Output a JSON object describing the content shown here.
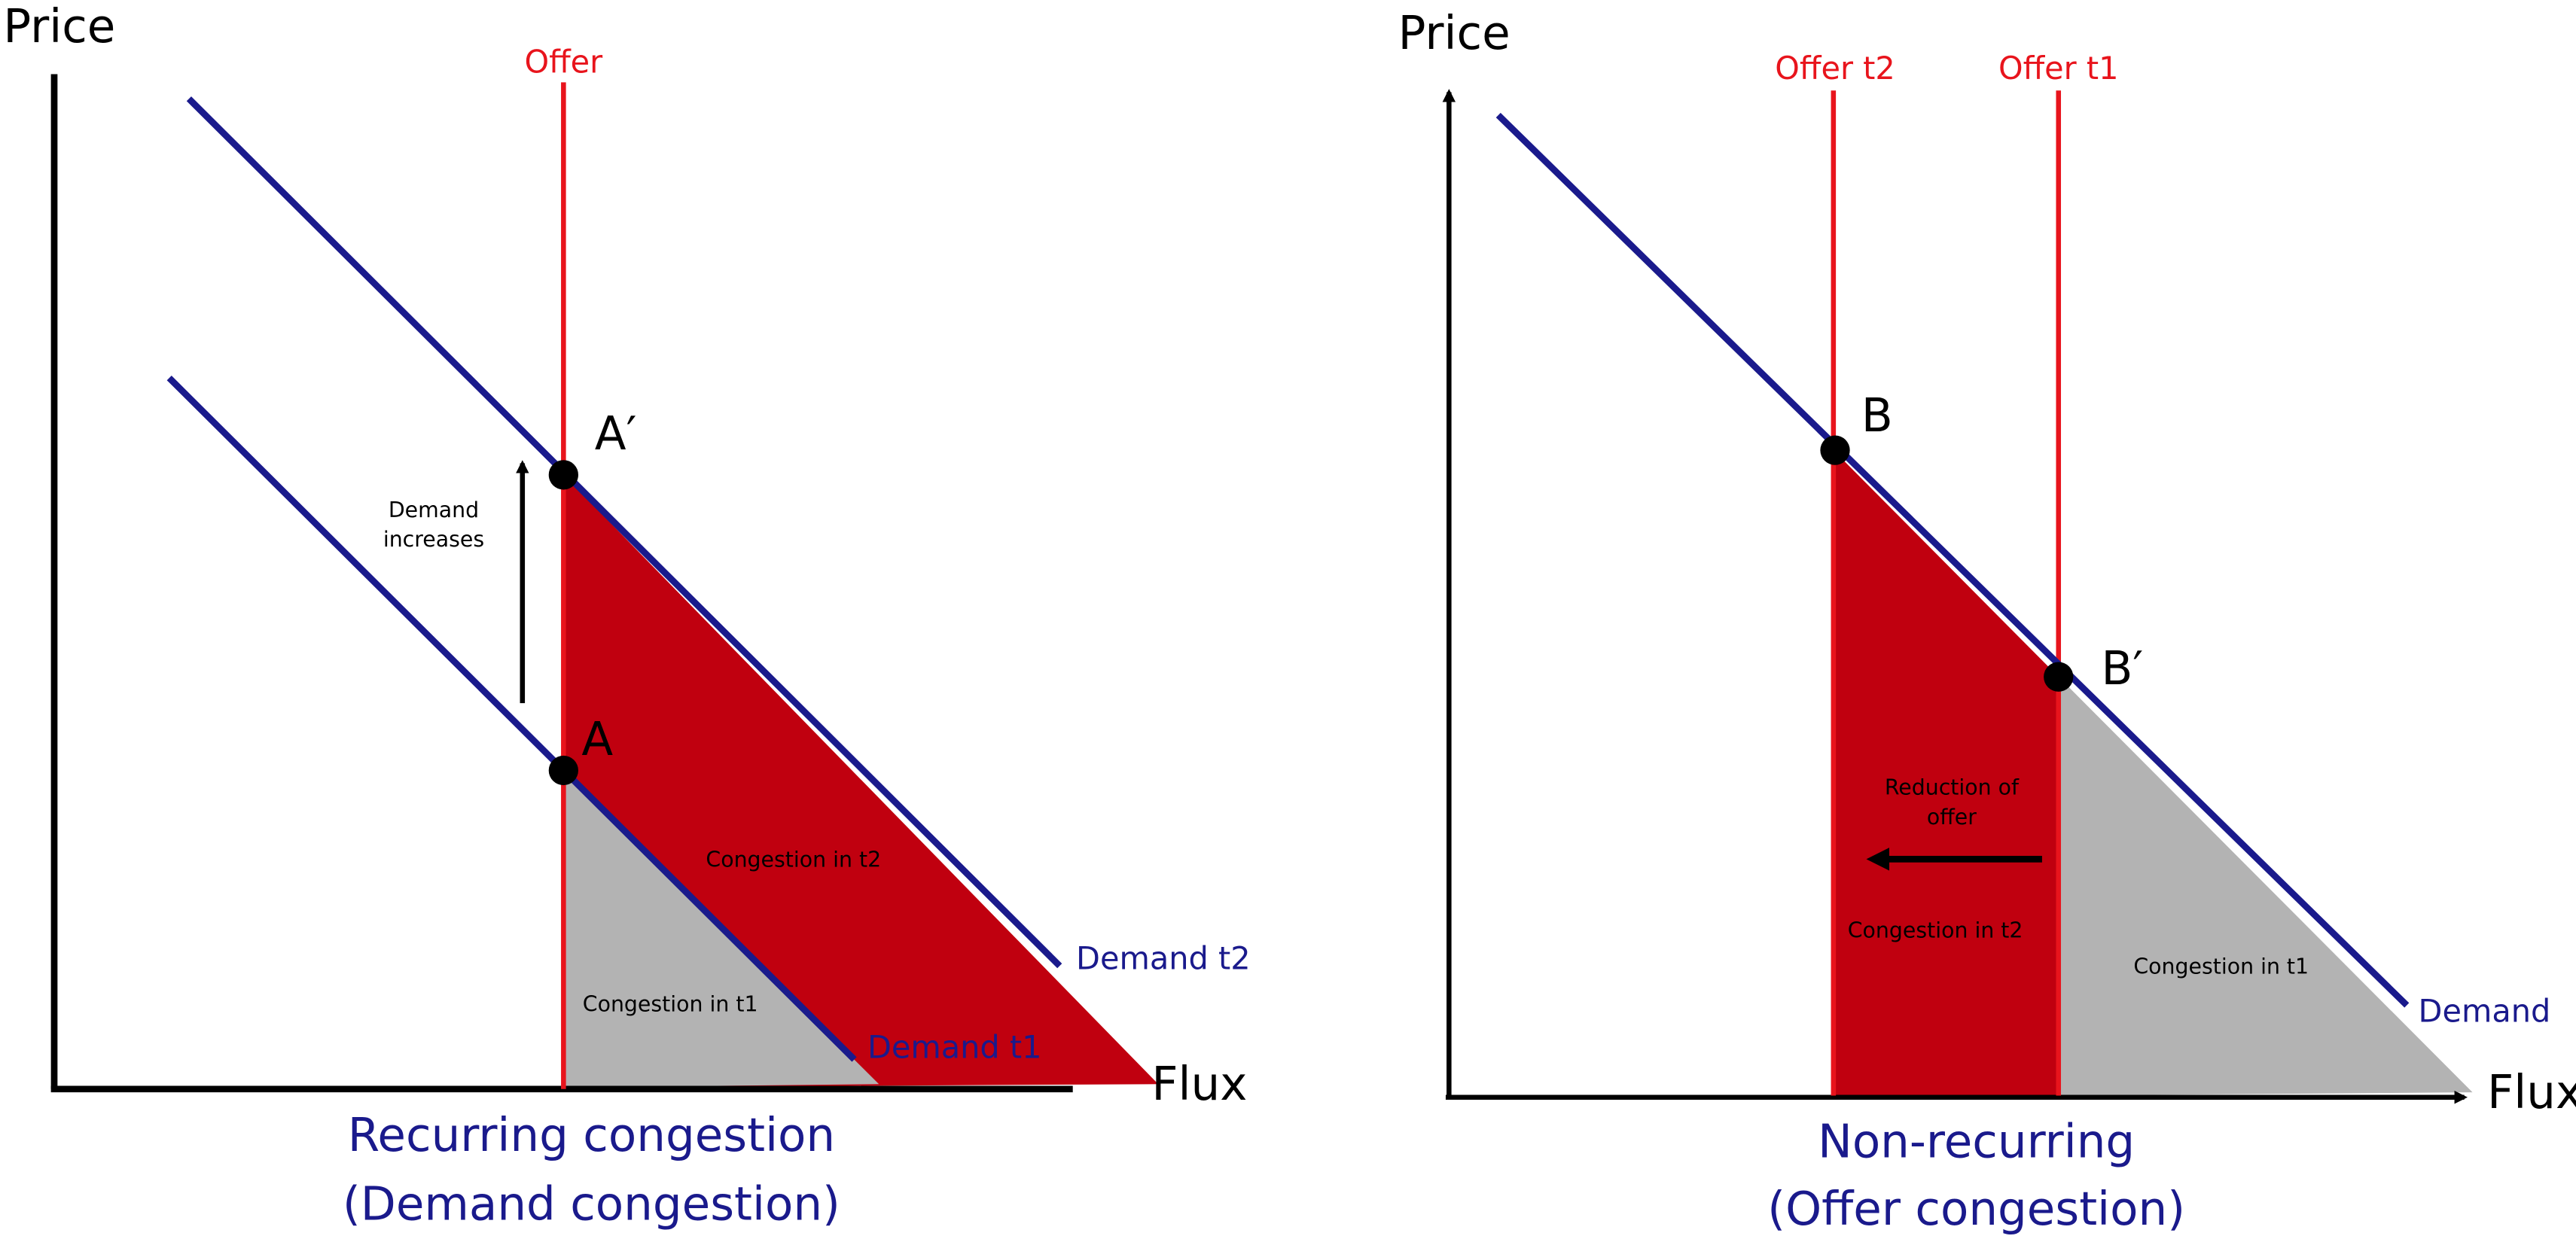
{
  "panels": [
    {
      "y_axis_label": "Price",
      "x_axis_label": "Flux",
      "offer_labels": [
        "Offer"
      ],
      "points": [
        "A′",
        "A"
      ],
      "annotation": [
        "Demand",
        "increases"
      ],
      "areas": [
        "Congestion in t2",
        "Congestion in t1"
      ],
      "demand_labels": [
        "Demand t2",
        "Demand t1"
      ],
      "title": [
        "Recurring congestion",
        "(Demand congestion)"
      ]
    },
    {
      "y_axis_label": "Price",
      "x_axis_label": "Flux",
      "offer_labels": [
        "Offer t2",
        "Offer t1"
      ],
      "points": [
        "B",
        "B′"
      ],
      "annotation": [
        "Reduction of",
        "offer"
      ],
      "areas": [
        "Congestion in t2",
        "Congestion in t1"
      ],
      "demand_labels": [
        "Demand"
      ],
      "title": [
        "Non-recurring",
        "(Offer congestion)"
      ]
    }
  ]
}
